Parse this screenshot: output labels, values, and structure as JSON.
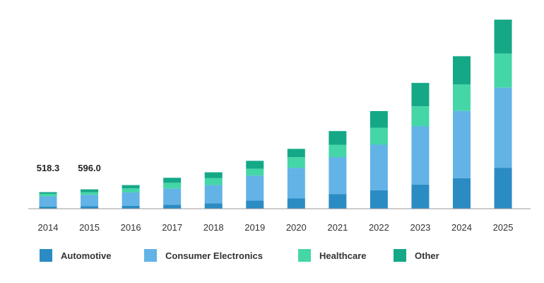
{
  "chart_data": {
    "type": "bar",
    "stacked": true,
    "title": "",
    "xlabel": "",
    "ylabel": "",
    "categories": [
      "2014",
      "2015",
      "2016",
      "2017",
      "2018",
      "2019",
      "2020",
      "2021",
      "2022",
      "2023",
      "2024",
      "2025"
    ],
    "series": [
      {
        "name": "Automotive",
        "color": "#2b8cc4",
        "values": [
          24,
          27,
          31,
          43,
          57,
          89,
          111,
          159,
          199,
          261,
          330,
          442
        ]
      },
      {
        "name": "Consumer Electronics",
        "color": "#63b3e6",
        "values": [
          109,
          123,
          145,
          176,
          198,
          268,
          331,
          398,
          492,
          629,
          726,
          866
        ]
      },
      {
        "name": "Healthcare",
        "color": "#45d6a8",
        "values": [
          28,
          28,
          43,
          61,
          75,
          75,
          115,
          134,
          183,
          216,
          285,
          367
        ]
      },
      {
        "name": "Other",
        "color": "#14a887",
        "values": [
          18,
          31,
          36,
          54,
          63,
          85,
          89,
          147,
          180,
          252,
          305,
          366
        ]
      }
    ],
    "ylim": [
      0,
      2100
    ],
    "grid": false,
    "legend_position": "bottom",
    "data_labels": [
      {
        "category": "2014",
        "text": "518.3"
      },
      {
        "category": "2015",
        "text": "596.0"
      }
    ]
  }
}
